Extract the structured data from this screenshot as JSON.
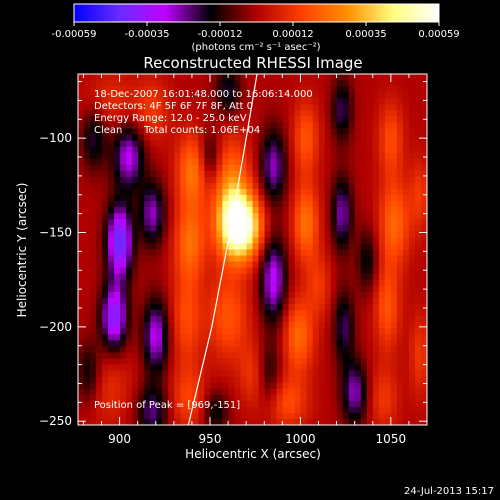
{
  "colorbar": {
    "tick_labels": [
      "-0.00059",
      "-0.00035",
      "-0.00012",
      "0.00012",
      "0.00035",
      "0.00059"
    ],
    "units_label": "(photons cm⁻² s⁻¹ asec⁻²)",
    "colormap": [
      "#0000ff",
      "#6a2cff",
      "#c000ff",
      "#000000",
      "#b00000",
      "#ff4000",
      "#ff9000",
      "#ffff80",
      "#ffffff"
    ]
  },
  "title": "Reconstructed RHESSI Image",
  "info": {
    "time_range": "18-Dec-2007 16:01:48.000 to 16:06:14.000",
    "detectors": "Detectors: 4F 5F 6F 7F 8F, Att 0",
    "energy_range": "Energy Range: 12.0 - 25.0 keV",
    "method": "Clean",
    "counts": "Total counts: 1.06E+04"
  },
  "peak_position": "Position of Peak = [969,-151]",
  "footer": {
    "datestamp": "24-Jul-2013 15:17"
  },
  "chart_data": {
    "type": "heatmap",
    "title": "Reconstructed RHESSI Image",
    "xlabel": "Heliocentric X (arcsec)",
    "ylabel": "Heliocentric Y (arcsec)",
    "xlim": [
      877,
      1070
    ],
    "ylim": [
      -252,
      -66
    ],
    "x_ticks": [
      900,
      950,
      1000,
      1050
    ],
    "y_ticks": [
      -100,
      -150,
      -200,
      -250
    ],
    "peak": {
      "x": 969,
      "y": -151
    },
    "color_range": [
      -0.00059,
      0.00059
    ],
    "limb_points": [
      [
        938,
        -252
      ],
      [
        951,
        -200
      ],
      [
        961,
        -150
      ],
      [
        970,
        -100
      ],
      [
        976,
        -66
      ]
    ],
    "sources": [
      {
        "x": 967,
        "y": -147,
        "value": 0.00059,
        "sx": 8,
        "sy": 12
      },
      {
        "x": 962,
        "y": -130,
        "value": 0.00028,
        "sx": 7,
        "sy": 20
      },
      {
        "x": 960,
        "y": -195,
        "value": 0.00018,
        "sx": 8,
        "sy": 16
      },
      {
        "x": 975,
        "y": -225,
        "value": 0.00014,
        "sx": 6,
        "sy": 12
      },
      {
        "x": 940,
        "y": -118,
        "value": 0.00024,
        "sx": 6,
        "sy": 14
      },
      {
        "x": 939,
        "y": -155,
        "value": 0.00022,
        "sx": 6,
        "sy": 14
      },
      {
        "x": 937,
        "y": -195,
        "value": 0.00016,
        "sx": 6,
        "sy": 18
      },
      {
        "x": 938,
        "y": -238,
        "value": 0.00014,
        "sx": 7,
        "sy": 12
      },
      {
        "x": 918,
        "y": -85,
        "value": 0.00012,
        "sx": 7,
        "sy": 12
      },
      {
        "x": 895,
        "y": -80,
        "value": 0.0001,
        "sx": 10,
        "sy": 10
      },
      {
        "x": 893,
        "y": -232,
        "value": 0.0001,
        "sx": 10,
        "sy": 14
      },
      {
        "x": 1003,
        "y": -145,
        "value": 0.00024,
        "sx": 5,
        "sy": 14
      },
      {
        "x": 1003,
        "y": -100,
        "value": 0.00018,
        "sx": 5,
        "sy": 14
      },
      {
        "x": 999,
        "y": -205,
        "value": 0.00022,
        "sx": 6,
        "sy": 14
      },
      {
        "x": 993,
        "y": -240,
        "value": 0.00016,
        "sx": 8,
        "sy": 10
      },
      {
        "x": 1010,
        "y": -178,
        "value": 0.00012,
        "sx": 5,
        "sy": 12
      },
      {
        "x": 1050,
        "y": -100,
        "value": 0.00016,
        "sx": 5,
        "sy": 14
      },
      {
        "x": 1052,
        "y": -145,
        "value": 0.00022,
        "sx": 6,
        "sy": 16
      },
      {
        "x": 1048,
        "y": -190,
        "value": 0.00018,
        "sx": 5,
        "sy": 16
      },
      {
        "x": 1046,
        "y": -238,
        "value": 0.00012,
        "sx": 6,
        "sy": 12
      },
      {
        "x": 1066,
        "y": -130,
        "value": 0.00012,
        "sx": 4,
        "sy": 14
      },
      {
        "x": 1066,
        "y": -215,
        "value": 0.00012,
        "sx": 4,
        "sy": 16
      },
      {
        "x": 900,
        "y": -155,
        "value": -0.00045,
        "sx": 5,
        "sy": 14
      },
      {
        "x": 897,
        "y": -195,
        "value": -0.0004,
        "sx": 5,
        "sy": 12
      },
      {
        "x": 905,
        "y": -110,
        "value": -0.0003,
        "sx": 6,
        "sy": 12
      },
      {
        "x": 918,
        "y": -140,
        "value": -0.00026,
        "sx": 5,
        "sy": 12
      },
      {
        "x": 920,
        "y": -205,
        "value": -0.0003,
        "sx": 5,
        "sy": 14
      },
      {
        "x": 918,
        "y": -245,
        "value": -0.00022,
        "sx": 6,
        "sy": 10
      },
      {
        "x": 886,
        "y": -100,
        "value": -0.00018,
        "sx": 5,
        "sy": 12
      },
      {
        "x": 883,
        "y": -225,
        "value": -0.00018,
        "sx": 5,
        "sy": 12
      },
      {
        "x": 985,
        "y": -115,
        "value": -0.00026,
        "sx": 5,
        "sy": 14
      },
      {
        "x": 985,
        "y": -175,
        "value": -0.00032,
        "sx": 5,
        "sy": 16
      },
      {
        "x": 982,
        "y": -225,
        "value": -0.00018,
        "sx": 5,
        "sy": 12
      },
      {
        "x": 1023,
        "y": -85,
        "value": -0.0002,
        "sx": 4,
        "sy": 12
      },
      {
        "x": 1023,
        "y": -140,
        "value": -0.00025,
        "sx": 4,
        "sy": 14
      },
      {
        "x": 1024,
        "y": -200,
        "value": -0.0002,
        "sx": 4,
        "sy": 14
      },
      {
        "x": 1030,
        "y": -235,
        "value": -0.00026,
        "sx": 5,
        "sy": 12
      },
      {
        "x": 1037,
        "y": -165,
        "value": -0.00016,
        "sx": 4,
        "sy": 12
      },
      {
        "x": 950,
        "y": -110,
        "value": -0.00016,
        "sx": 4,
        "sy": 10
      },
      {
        "x": 953,
        "y": -245,
        "value": -0.00016,
        "sx": 5,
        "sy": 8
      },
      {
        "x": 960,
        "y": -75,
        "value": -0.00018,
        "sx": 5,
        "sy": 10
      }
    ]
  }
}
